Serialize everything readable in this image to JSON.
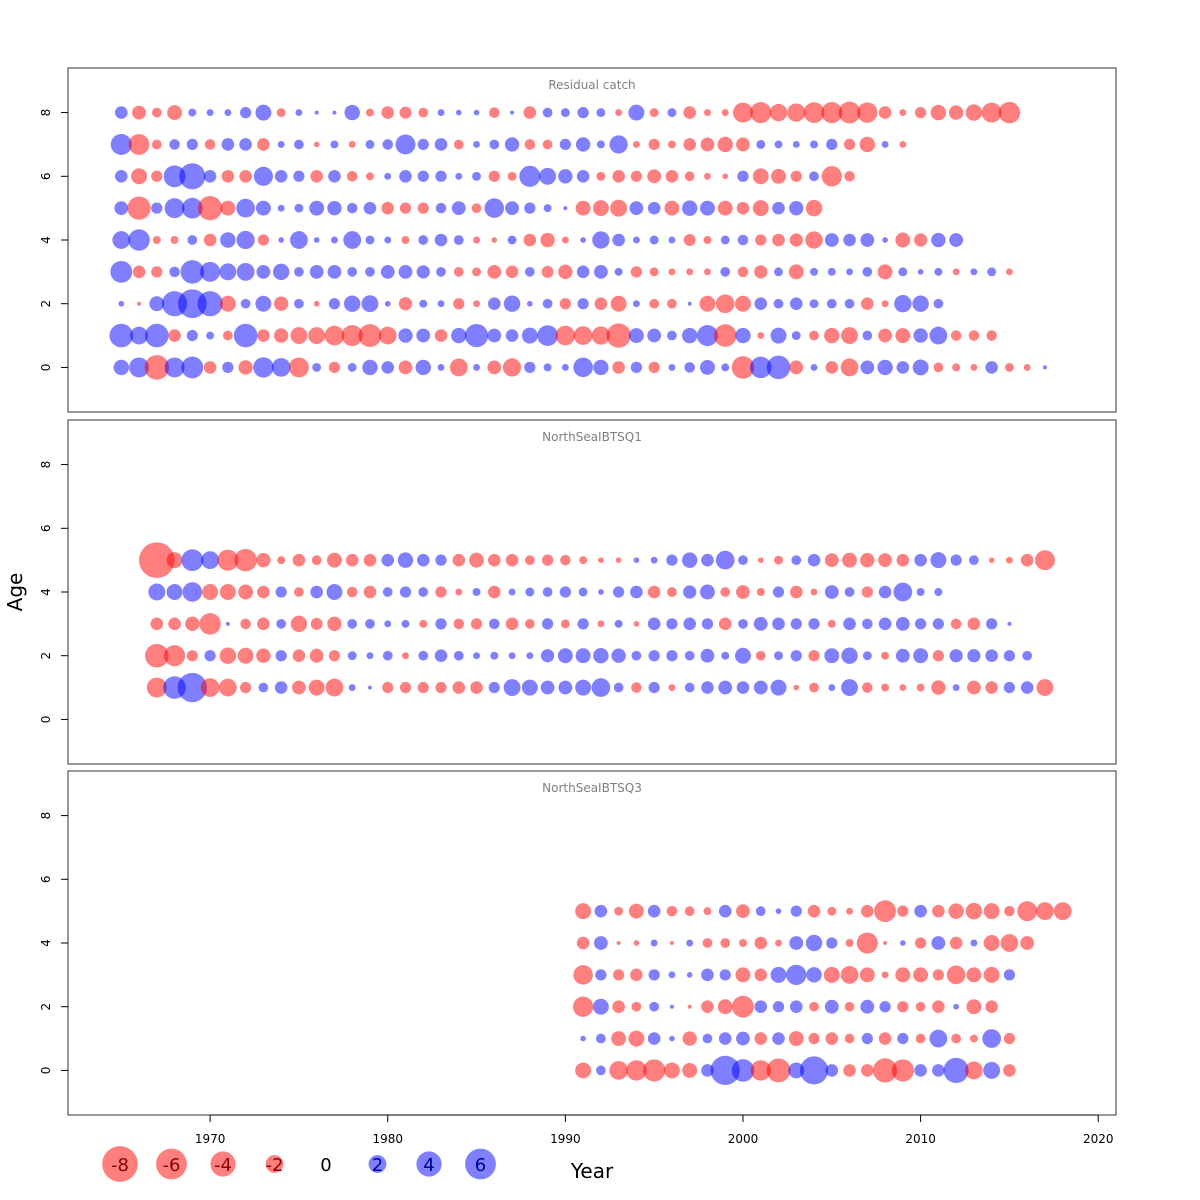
{
  "colors": {
    "negative": "#ff0000",
    "positive": "#0000ff",
    "frame": "#333333",
    "panel_title": "#808080",
    "zero_label": "#000000"
  },
  "chart_data": {
    "type": "scatter",
    "subtype": "bubble",
    "xlabel": "Year",
    "ylabel": "Age",
    "xlim": [
      1962,
      2021
    ],
    "ylim": [
      -1.4,
      9.4
    ],
    "x_ticks": [
      {
        "value": 1970,
        "label": "1970"
      },
      {
        "value": 1980,
        "label": "1980"
      },
      {
        "value": 1990,
        "label": "1990"
      },
      {
        "value": 2000,
        "label": "2000"
      },
      {
        "value": 2010,
        "label": "2010"
      },
      {
        "value": 2020,
        "label": "2020"
      }
    ],
    "y_ticks": [
      {
        "value": 0,
        "label": "0"
      },
      {
        "value": 2,
        "label": "2"
      },
      {
        "value": 4,
        "label": "4"
      },
      {
        "value": 6,
        "label": "6"
      },
      {
        "value": 8,
        "label": "8"
      }
    ],
    "legend": {
      "placement": "bottom-left",
      "entries": [
        {
          "value": -8,
          "label": "-8"
        },
        {
          "value": -6,
          "label": "-6"
        },
        {
          "value": -4,
          "label": "-4"
        },
        {
          "value": -2,
          "label": "-2"
        },
        {
          "value": 0,
          "label": "0"
        },
        {
          "value": 2,
          "label": "2"
        },
        {
          "value": 4,
          "label": "4"
        },
        {
          "value": 6,
          "label": "6"
        }
      ]
    },
    "panels": [
      {
        "title": "Residual catch",
        "years": [
          1965,
          2017
        ],
        "ages": [
          0,
          1,
          2,
          3,
          4,
          5,
          6,
          7,
          8
        ],
        "values": [
          [
            1.5,
            2.5,
            -3.8,
            2.5,
            3.0,
            -1.0,
            0.8,
            -1.3,
            2.6,
            2.2,
            -2.5,
            0.5,
            -0.8,
            0.5,
            1.5,
            1.0,
            -1.2,
            1.5,
            0.3,
            -2.0,
            0.3,
            -1.2,
            -2.1,
            0.8,
            0.4,
            0.3,
            2.4,
            1.5,
            -1.0,
            0.8,
            -0.8,
            0.3,
            0.7,
            1.4,
            0.4,
            -3.2,
            2.9,
            3.5,
            -1.2,
            0.3,
            -1.0,
            -2.0,
            1.2,
            1.5,
            1.0,
            1.6,
            -0.6,
            -0.4,
            -0.3,
            1.0,
            -0.5,
            -0.3,
            0.1
          ],
          [
            3.5,
            2.0,
            3.5,
            -1.0,
            0.8,
            0.4,
            -0.6,
            3.5,
            -1.0,
            -1.3,
            -1.8,
            -1.8,
            -2.4,
            -2.8,
            -3.3,
            -2.0,
            1.3,
            1.2,
            -1.0,
            1.5,
            3.4,
            1.2,
            1.0,
            1.6,
            2.7,
            -2.4,
            -2.2,
            -2.1,
            -3.7,
            1.4,
            1.2,
            0.6,
            1.5,
            2.8,
            -3.2,
            1.5,
            -0.3,
            1.6,
            0.5,
            -0.6,
            -1.5,
            -1.8,
            0.6,
            -1.2,
            -1.4,
            1.3,
            2.0,
            -0.7,
            -0.7,
            -0.7
          ],
          [
            0.2,
            -0.1,
            1.4,
            4.0,
            5.2,
            4.0,
            -1.6,
            0.6,
            1.6,
            -1.3,
            0.6,
            -0.2,
            0.8,
            1.7,
            1.8,
            0.2,
            -1.1,
            0.4,
            0.3,
            -0.8,
            -0.3,
            1.0,
            1.7,
            0.2,
            0.6,
            -0.8,
            0.8,
            -1.0,
            -1.6,
            0.3,
            -0.6,
            -0.6,
            0.1,
            -1.6,
            -2.2,
            -1.6,
            1.0,
            0.6,
            1.0,
            0.5,
            0.6,
            0.6,
            -1.0,
            -0.3,
            1.9,
            1.7,
            0.6
          ],
          [
            3.0,
            -1.0,
            -0.8,
            0.7,
            3.5,
            2.5,
            1.8,
            2.0,
            1.2,
            1.7,
            0.6,
            1.2,
            1.2,
            0.6,
            0.6,
            1.2,
            1.2,
            1.1,
            0.6,
            -0.6,
            -0.5,
            -1.2,
            -1.0,
            0.6,
            -0.9,
            -1.3,
            1.0,
            1.2,
            0.4,
            -0.8,
            -0.5,
            -0.3,
            -0.3,
            -0.3,
            0.6,
            -0.7,
            -1.1,
            0.5,
            -1.4,
            0.4,
            0.4,
            0.3,
            0.6,
            -1.4,
            0.5,
            0.2,
            0.4,
            -0.3,
            0.3,
            0.5,
            -0.3
          ],
          [
            2.0,
            2.9,
            -0.4,
            -0.4,
            0.6,
            -1.0,
            1.5,
            2.1,
            -0.8,
            0.2,
            2.0,
            0.2,
            0.3,
            2.0,
            0.5,
            0.3,
            -0.4,
            0.6,
            1.0,
            0.6,
            -0.3,
            -0.2,
            0.5,
            -1.0,
            -1.3,
            -0.3,
            0.2,
            1.9,
            1.0,
            0.3,
            0.5,
            0.3,
            -0.9,
            -0.4,
            0.5,
            0.7,
            -0.8,
            -1.0,
            -1.1,
            -1.9,
            1.2,
            1.0,
            1.2,
            0.2,
            -1.4,
            -1.1,
            1.3,
            1.2
          ],
          [
            1.2,
            -3.4,
            0.8,
            2.5,
            2.7,
            -3.7,
            -1.4,
            2.2,
            1.4,
            0.3,
            0.5,
            1.4,
            1.3,
            0.7,
            1.0,
            -1.0,
            -0.8,
            -0.8,
            0.7,
            1.2,
            -0.6,
            2.4,
            1.2,
            0.8,
            0.4,
            0.1,
            -1.4,
            -1.6,
            -1.8,
            1.2,
            1.0,
            -1.4,
            1.5,
            1.4,
            -1.4,
            -1.0,
            -1.6,
            1.0,
            1.3,
            -1.7
          ],
          [
            1.0,
            -1.6,
            -0.8,
            3.0,
            4.3,
            1.0,
            -1.0,
            -1.0,
            2.3,
            1.0,
            0.8,
            -1.0,
            1.0,
            -0.7,
            -0.4,
            0.3,
            1.0,
            0.8,
            0.8,
            0.3,
            0.5,
            -0.8,
            -0.5,
            2.8,
            1.8,
            1.3,
            1.0,
            -0.5,
            -1.0,
            -0.8,
            -1.2,
            -1.0,
            -0.6,
            -0.3,
            -0.2,
            0.8,
            -1.6,
            -1.4,
            -0.8,
            0.6,
            -2.6,
            -0.7
          ],
          [
            2.8,
            -2.7,
            -0.6,
            0.7,
            0.8,
            -0.7,
            1.0,
            1.0,
            -1.0,
            0.3,
            0.6,
            -0.2,
            0.4,
            -0.3,
            0.5,
            0.7,
            2.5,
            0.8,
            1.0,
            -0.6,
            0.3,
            0.6,
            1.3,
            -0.7,
            -0.6,
            0.8,
            1.3,
            0.4,
            2.1,
            -0.3,
            -0.8,
            -0.4,
            -1.0,
            -1.2,
            -1.5,
            -1.2,
            0.5,
            0.4,
            0.3,
            0.4,
            0.8,
            -0.8,
            -1.5,
            0.3,
            -0.3
          ],
          [
            1.0,
            -1.2,
            -0.6,
            -1.4,
            0.4,
            0.3,
            0.3,
            0.8,
            1.6,
            -0.5,
            0.3,
            0.1,
            0.1,
            1.5,
            -0.4,
            -1.0,
            -0.9,
            -0.6,
            0.3,
            0.2,
            0.2,
            -0.7,
            0.1,
            -1.0,
            0.6,
            0.5,
            0.8,
            0.5,
            -0.3,
            1.6,
            -0.5,
            0.5,
            -1.0,
            -0.3,
            -0.3,
            -2.5,
            -2.8,
            -1.9,
            -2.1,
            -2.7,
            -2.8,
            -3.0,
            -2.6,
            -1.0,
            -0.3,
            -0.8,
            -1.5,
            -1.3,
            -1.7,
            -2.5,
            -2.9
          ]
        ]
      },
      {
        "title": "NorthSeaIBTSQ1",
        "years": [
          1967,
          2018
        ],
        "ages": [
          1,
          2,
          3,
          4,
          5
        ],
        "values": [
          [
            -2.5,
            3.2,
            5.4,
            -2.2,
            -2.0,
            -0.8,
            0.6,
            1.0,
            -1.2,
            -1.6,
            -2.0,
            0.3,
            0.1,
            -0.8,
            -0.8,
            -0.8,
            -0.8,
            -1.0,
            -1.0,
            0.8,
            1.8,
            1.6,
            1.2,
            1.2,
            1.6,
            2.2,
            0.6,
            -0.7,
            0.8,
            -0.3,
            0.6,
            1.0,
            1.2,
            1.0,
            1.2,
            1.6,
            -0.2,
            -0.6,
            0.3,
            1.8,
            -0.7,
            -0.4,
            -0.3,
            -0.4,
            -1.3,
            0.3,
            -1.2,
            -1.0,
            0.8,
            1.0,
            -1.8
          ],
          [
            -3.5,
            -2.8,
            -0.8,
            0.8,
            -1.7,
            -1.6,
            -1.3,
            0.8,
            -1.0,
            -1.2,
            -0.8,
            0.5,
            0.3,
            0.6,
            -0.3,
            0.6,
            1.0,
            0.6,
            0.3,
            0.4,
            0.3,
            0.3,
            1.1,
            1.4,
            1.4,
            1.5,
            1.3,
            0.6,
            0.8,
            0.8,
            0.6,
            1.2,
            0.4,
            1.6,
            -0.6,
            0.5,
            0.8,
            -0.8,
            1.4,
            1.7,
            0.5,
            -0.4,
            1.2,
            1.4,
            -0.8,
            1.1,
            1.1,
            1.0,
            0.8,
            0.6
          ],
          [
            -1.0,
            -1.0,
            -1.3,
            -2.9,
            0.1,
            -0.7,
            -1.0,
            0.6,
            -1.7,
            -0.9,
            -1.3,
            0.6,
            0.6,
            0.3,
            0.4,
            -0.4,
            0.8,
            -0.7,
            -0.8,
            0.7,
            -1.0,
            -0.6,
            0.8,
            -0.5,
            0.8,
            -0.3,
            0.4,
            -0.2,
            1.0,
            0.8,
            1.0,
            0.8,
            -1.0,
            0.6,
            1.2,
            1.0,
            0.8,
            0.8,
            -0.4,
            1.0,
            0.7,
            1.0,
            1.2,
            0.8,
            0.8,
            -0.7,
            -1.0,
            0.8,
            0.1
          ],
          [
            1.8,
            1.6,
            2.4,
            -1.6,
            -1.6,
            -1.4,
            -1.0,
            0.8,
            -0.6,
            1.0,
            1.6,
            -0.7,
            -1.0,
            0.6,
            0.8,
            0.6,
            -0.8,
            -0.3,
            0.4,
            -1.0,
            0.3,
            0.5,
            0.6,
            0.8,
            0.5,
            0.2,
            0.8,
            1.0,
            -1.0,
            -0.6,
            1.1,
            1.4,
            -0.6,
            -1.2,
            -0.4,
            0.8,
            -1.0,
            -0.3,
            1.2,
            0.6,
            -0.8,
            1.0,
            2.2,
            0.4,
            0.4
          ],
          [
            -8.0,
            -1.6,
            3.0,
            2.0,
            -2.8,
            -3.2,
            -1.3,
            -0.4,
            -1.0,
            -0.6,
            -1.4,
            -1.0,
            -1.0,
            1.0,
            1.5,
            1.0,
            0.8,
            -1.0,
            -1.4,
            -1.0,
            -1.0,
            -0.6,
            -0.8,
            -0.7,
            -0.4,
            -0.2,
            -0.2,
            0.2,
            0.3,
            0.8,
            1.5,
            1.0,
            2.2,
            0.6,
            -0.2,
            -0.5,
            0.6,
            1.0,
            -1.2,
            -1.4,
            -1.3,
            -1.2,
            -1.0,
            1.0,
            1.6,
            0.8,
            0.6,
            -0.2,
            -0.3,
            -1.0,
            -2.5
          ]
        ]
      },
      {
        "title": "NorthSeaIBTSQ3",
        "years": [
          1991,
          2017
        ],
        "ages": [
          0,
          1,
          2,
          3,
          4,
          5
        ],
        "values": [
          [
            -1.6,
            0.6,
            -2.2,
            -2.6,
            -3.1,
            -1.6,
            -1.4,
            1.0,
            5.4,
            3.2,
            -2.6,
            -3.6,
            1.6,
            5.0,
            1.0,
            -1.0,
            -1.0,
            -3.7,
            -3.1,
            1.0,
            1.0,
            4.0,
            -2.0,
            1.8,
            -1.0
          ],
          [
            0.2,
            0.6,
            -1.4,
            -1.6,
            1.0,
            0.2,
            -1.3,
            0.6,
            1.0,
            1.2,
            -1.0,
            1.0,
            -1.4,
            -0.8,
            -1.0,
            -0.6,
            0.8,
            -1.0,
            0.8,
            -0.6,
            2.0,
            -0.6,
            -0.4,
            2.2,
            -0.8
          ],
          [
            -2.6,
            1.6,
            -1.0,
            -0.6,
            0.6,
            0.1,
            -0.1,
            -1.0,
            -1.4,
            -3.0,
            1.0,
            0.8,
            1.0,
            -0.6,
            1.2,
            -0.6,
            1.2,
            0.8,
            -0.8,
            -0.6,
            -1.0,
            0.2,
            -1.4,
            -1.0
          ],
          [
            -2.4,
            0.8,
            -0.8,
            -1.0,
            0.8,
            0.3,
            0.2,
            1.0,
            0.8,
            -1.4,
            -1.0,
            1.6,
            2.6,
            1.5,
            -1.6,
            -2.0,
            -1.4,
            -0.3,
            -1.4,
            -1.4,
            -0.8,
            -2.2,
            -1.4,
            -1.6,
            0.8
          ],
          [
            -1.0,
            1.2,
            -0.1,
            -0.2,
            0.3,
            -0.1,
            0.3,
            -0.6,
            -0.6,
            -0.4,
            -1.0,
            -0.3,
            1.2,
            1.7,
            0.8,
            -0.4,
            -2.8,
            -0.1,
            0.2,
            -0.8,
            1.2,
            -1.0,
            0.3,
            -1.6,
            -2.0,
            -1.2
          ],
          [
            -1.6,
            1.0,
            -0.5,
            -1.4,
            1.0,
            -0.7,
            -0.6,
            -0.4,
            1.0,
            -1.2,
            0.6,
            0.2,
            0.8,
            -1.0,
            -0.5,
            -0.3,
            -1.0,
            -3.0,
            -0.8,
            1.0,
            -1.0,
            -1.5,
            -1.7,
            -1.6,
            -0.7,
            -2.5,
            -2.0,
            -2.0
          ]
        ]
      }
    ]
  }
}
